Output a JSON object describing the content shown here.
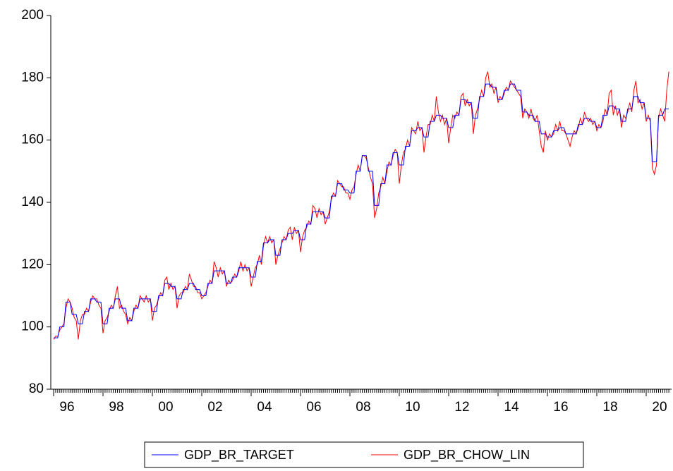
{
  "chart_data": {
    "type": "line",
    "categories": [
      "96",
      null,
      null,
      null,
      null,
      null,
      null,
      null,
      null,
      null,
      null,
      null,
      null,
      null,
      null,
      null,
      null,
      null,
      null,
      null,
      null,
      null,
      null,
      null,
      "98",
      null,
      null,
      null,
      null,
      null,
      null,
      null,
      null,
      null,
      null,
      null,
      null,
      null,
      null,
      null,
      null,
      null,
      null,
      null,
      null,
      null,
      null,
      null,
      "00",
      null,
      null,
      null,
      null,
      null,
      null,
      null,
      null,
      null,
      null,
      null,
      null,
      null,
      null,
      null,
      null,
      null,
      null,
      null,
      null,
      null,
      null,
      null,
      "02",
      null,
      null,
      null,
      null,
      null,
      null,
      null,
      null,
      null,
      null,
      null,
      null,
      null,
      null,
      null,
      null,
      null,
      null,
      null,
      null,
      null,
      null,
      null,
      "04",
      null,
      null,
      null,
      null,
      null,
      null,
      null,
      null,
      null,
      null,
      null,
      null,
      null,
      null,
      null,
      null,
      null,
      null,
      null,
      null,
      null,
      null,
      null,
      "06",
      null,
      null,
      null,
      null,
      null,
      null,
      null,
      null,
      null,
      null,
      null,
      null,
      null,
      null,
      null,
      null,
      null,
      null,
      null,
      null,
      null,
      null,
      null,
      "08",
      null,
      null,
      null,
      null,
      null,
      null,
      null,
      null,
      null,
      null,
      null,
      null,
      null,
      null,
      null,
      null,
      null,
      null,
      null,
      null,
      null,
      null,
      null,
      "10",
      null,
      null,
      null,
      null,
      null,
      null,
      null,
      null,
      null,
      null,
      null,
      null,
      null,
      null,
      null,
      null,
      null,
      null,
      null,
      null,
      null,
      null,
      null,
      "12",
      null,
      null,
      null,
      null,
      null,
      null,
      null,
      null,
      null,
      null,
      null,
      null,
      null,
      null,
      null,
      null,
      null,
      null,
      null,
      null,
      null,
      null,
      null,
      "14",
      null,
      null,
      null,
      null,
      null,
      null,
      null,
      null,
      null,
      null,
      null,
      null,
      null,
      null,
      null,
      null,
      null,
      null,
      null,
      null,
      null,
      null,
      null,
      "16",
      null,
      null,
      null,
      null,
      null,
      null,
      null,
      null,
      null,
      null,
      null,
      null,
      null,
      null,
      null,
      null,
      null,
      null,
      null,
      null,
      null,
      null,
      null,
      "18",
      null,
      null,
      null,
      null,
      null,
      null,
      null,
      null,
      null,
      null,
      null,
      null,
      null,
      null,
      null,
      null,
      null,
      null,
      null,
      null,
      null,
      null,
      null,
      "20",
      null,
      null,
      null,
      null,
      null,
      null,
      null,
      null,
      null,
      null,
      null
    ],
    "series": [
      {
        "name": "GDP_BR_TARGET",
        "color": "#0000ff",
        "values": [
          96.5,
          96.5,
          96.5,
          100,
          100,
          100,
          108,
          108,
          108,
          104,
          104,
          104,
          101,
          101,
          101,
          105,
          105,
          105,
          109,
          109,
          109,
          108,
          108,
          108,
          101,
          101,
          101,
          106,
          106,
          106,
          109,
          109,
          109,
          106,
          106,
          106,
          102,
          102,
          102,
          106,
          106,
          106,
          109,
          109,
          109,
          109,
          109,
          109,
          105,
          105,
          105,
          110,
          110,
          110,
          114,
          114,
          114,
          113,
          113,
          113,
          109,
          109,
          109,
          112,
          112,
          112,
          114,
          114,
          114,
          112,
          112,
          112,
          110,
          110,
          110,
          114,
          114,
          114,
          118,
          118,
          118,
          118,
          118,
          118,
          114,
          114,
          114,
          116,
          116,
          116,
          119,
          119,
          119,
          119,
          119,
          119,
          116,
          116,
          116,
          121,
          121,
          121,
          127,
          127,
          127,
          128,
          128,
          128,
          123,
          123,
          123,
          128,
          128,
          128,
          130,
          130,
          130,
          131,
          131,
          131,
          128,
          128,
          128,
          133,
          133,
          133,
          137,
          137,
          137,
          137,
          137,
          137,
          135,
          135,
          135,
          142,
          142,
          142,
          146,
          146,
          146,
          144,
          144,
          144,
          143,
          143,
          143,
          150,
          150,
          150,
          155,
          155,
          155,
          150,
          150,
          150,
          139,
          139,
          139,
          146,
          146,
          146,
          152,
          152,
          152,
          156,
          156,
          156,
          152,
          152,
          152,
          158,
          158,
          158,
          163,
          163,
          163,
          164,
          164,
          164,
          161,
          161,
          161,
          166,
          166,
          166,
          168,
          168,
          168,
          167,
          167,
          167,
          164,
          164,
          164,
          168,
          168,
          168,
          173,
          173,
          173,
          172,
          172,
          172,
          167,
          167,
          167,
          174,
          174,
          174,
          178,
          178,
          178,
          177,
          177,
          177,
          173,
          173,
          173,
          176,
          176,
          176,
          178,
          178,
          178,
          176,
          176,
          176,
          169,
          169,
          169,
          168,
          168,
          168,
          166,
          166,
          166,
          162,
          162,
          162,
          161,
          161,
          161,
          163,
          163,
          163,
          164,
          164,
          164,
          162,
          162,
          162,
          162,
          162,
          162,
          165,
          165,
          165,
          167,
          167,
          167,
          166,
          166,
          166,
          164,
          164,
          164,
          168,
          168,
          168,
          171,
          171,
          171,
          170,
          170,
          170,
          166,
          166,
          166,
          170,
          170,
          170,
          174,
          174,
          174,
          172,
          172,
          172,
          167,
          167,
          167,
          153,
          153,
          153,
          168,
          168,
          168,
          170,
          170,
          170
        ]
      },
      {
        "name": "GDP_BR_CHOW_LIN",
        "color": "#ff0000",
        "values": [
          96,
          97,
          97,
          99,
          100,
          101,
          106,
          109,
          108,
          106,
          103,
          102,
          96,
          102,
          104,
          104,
          106,
          105,
          108,
          110,
          109,
          109,
          107,
          106,
          98,
          102,
          103,
          105,
          107,
          106,
          110,
          113,
          106,
          107,
          105,
          104,
          101,
          103,
          102,
          105,
          107,
          106,
          110,
          109,
          108,
          110,
          108,
          109,
          102,
          106,
          107,
          109,
          111,
          110,
          115,
          116,
          112,
          114,
          112,
          113,
          106,
          110,
          111,
          111,
          113,
          112,
          117,
          115,
          113,
          113,
          111,
          111,
          109,
          110,
          111,
          113,
          115,
          114,
          121,
          119,
          116,
          119,
          117,
          118,
          113,
          115,
          114,
          115,
          117,
          116,
          118,
          121,
          118,
          120,
          118,
          119,
          113,
          116,
          119,
          120,
          123,
          120,
          126,
          129,
          127,
          129,
          127,
          128,
          120,
          123,
          125,
          127,
          129,
          128,
          131,
          132,
          128,
          132,
          130,
          131,
          124,
          129,
          131,
          132,
          134,
          133,
          139,
          138,
          135,
          138,
          136,
          137,
          133,
          135,
          137,
          141,
          143,
          142,
          147,
          146,
          145,
          145,
          143,
          143,
          141,
          144,
          145,
          149,
          152,
          150,
          155,
          155,
          154,
          151,
          148,
          146,
          135,
          138,
          143,
          145,
          148,
          146,
          150,
          153,
          152,
          155,
          157,
          156,
          146,
          152,
          156,
          157,
          160,
          158,
          164,
          163,
          162,
          166,
          163,
          164,
          156,
          161,
          165,
          165,
          168,
          166,
          174,
          169,
          166,
          168,
          165,
          167,
          159,
          164,
          168,
          167,
          169,
          168,
          174,
          175,
          171,
          173,
          171,
          172,
          162,
          168,
          170,
          173,
          176,
          174,
          180,
          182,
          177,
          178,
          175,
          177,
          172,
          174,
          173,
          175,
          177,
          176,
          179,
          178,
          177,
          176,
          175,
          174,
          167,
          170,
          169,
          167,
          170,
          167,
          166,
          168,
          163,
          158,
          156,
          163,
          160,
          162,
          161,
          162,
          165,
          163,
          166,
          163,
          163,
          162,
          160,
          158,
          161,
          163,
          162,
          164,
          167,
          165,
          169,
          167,
          166,
          167,
          165,
          166,
          163,
          165,
          164,
          166,
          170,
          168,
          175,
          176,
          168,
          171,
          168,
          170,
          164,
          168,
          167,
          169,
          172,
          169,
          176,
          179,
          172,
          173,
          170,
          172,
          166,
          168,
          166,
          151,
          149,
          152,
          167,
          170,
          168,
          166,
          176,
          182
        ]
      }
    ],
    "ylim": [
      80,
      200
    ],
    "yticks": [
      80,
      100,
      120,
      140,
      160,
      180,
      200
    ]
  }
}
